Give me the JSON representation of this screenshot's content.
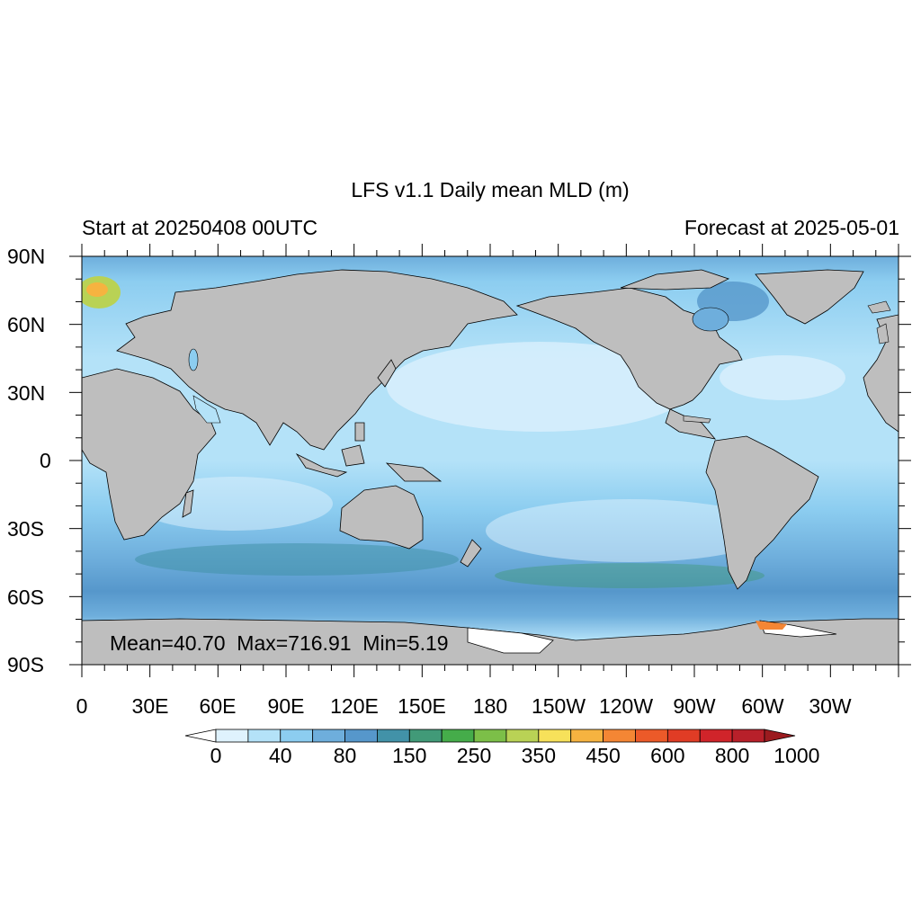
{
  "title": "LFS v1.1 Daily mean MLD (m)",
  "subtitle_left": "Start at 20250408 00UTC",
  "subtitle_right": "Forecast at 2025-05-01",
  "stats": {
    "text": "Mean=40.70  Max=716.91  Min=5.19"
  },
  "lat_labels": [
    "90N",
    "60N",
    "30N",
    "0",
    "30S",
    "60S",
    "90S"
  ],
  "lon_labels": [
    "0",
    "30E",
    "60E",
    "90E",
    "120E",
    "150E",
    "180",
    "150W",
    "120W",
    "90W",
    "60W",
    "30W"
  ],
  "colorbar": {
    "labels": [
      "0",
      "40",
      "80",
      "150",
      "250",
      "350",
      "450",
      "600",
      "800",
      "1000"
    ],
    "colors": [
      "#ffffff",
      "#dff2fd",
      "#b4e2f8",
      "#8ccdf0",
      "#6eaedc",
      "#5697cb",
      "#4292a8",
      "#419a78",
      "#45ac4a",
      "#7cbf48",
      "#b9d255",
      "#f7e15a",
      "#f6b340",
      "#f48634",
      "#ec5a29",
      "#e03c25",
      "#d0242a",
      "#b8202a",
      "#9b1b1f"
    ]
  },
  "colors": {
    "land": "#bebebe",
    "ocean_base": "#b4e2f8",
    "sea_ice": "#ffffff",
    "coastline": "#000000"
  }
}
